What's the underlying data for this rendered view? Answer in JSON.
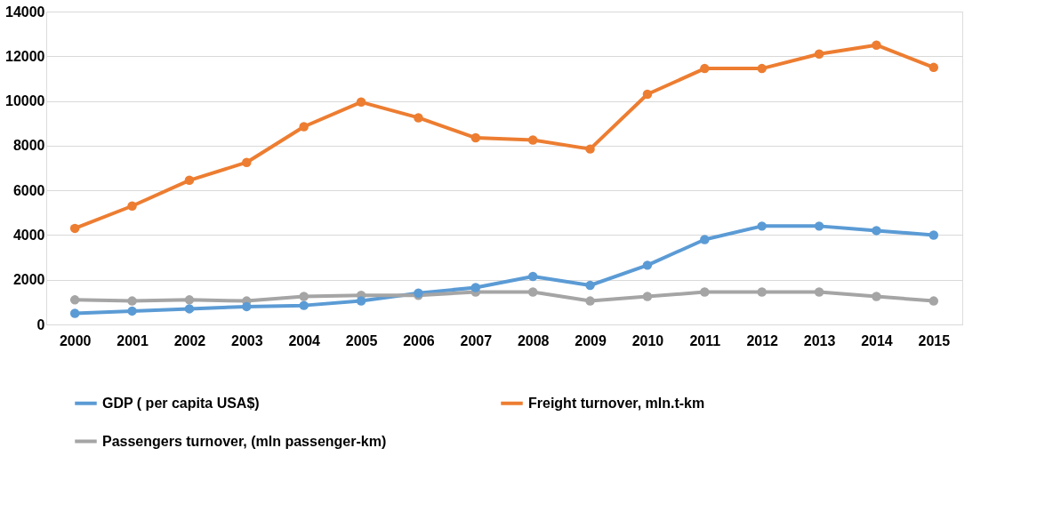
{
  "chart_data": {
    "type": "line",
    "categories": [
      "2000",
      "2001",
      "2002",
      "2003",
      "2004",
      "2005",
      "2006",
      "2007",
      "2008",
      "2009",
      "2010",
      "2011",
      "2012",
      "2013",
      "2014",
      "2015"
    ],
    "series": [
      {
        "name": "GDP ( per capita USA$)",
        "color": "#5b9bd5",
        "values": [
          500,
          600,
          700,
          800,
          850,
          1050,
          1400,
          1650,
          2150,
          1750,
          2650,
          3800,
          4400,
          4400,
          4200,
          4000
        ]
      },
      {
        "name": "Freight turnover, mln.t-km",
        "color": "#ed7d31",
        "values": [
          4300,
          5300,
          6450,
          7250,
          8850,
          9950,
          9250,
          8350,
          8250,
          7850,
          10300,
          11450,
          11450,
          12100,
          12500,
          11500
        ]
      },
      {
        "name": "Passengers turnover, (mln passenger-km)",
        "color": "#a5a5a5",
        "values": [
          1100,
          1050,
          1100,
          1050,
          1250,
          1300,
          1300,
          1450,
          1450,
          1050,
          1250,
          1450,
          1450,
          1450,
          1250,
          1050
        ]
      }
    ],
    "ylim": [
      0,
      14000
    ],
    "yticks": [
      0,
      2000,
      4000,
      6000,
      8000,
      10000,
      12000,
      14000
    ],
    "grid": "y",
    "legend": "bottom",
    "marker": "circle",
    "line_style": "solid"
  }
}
